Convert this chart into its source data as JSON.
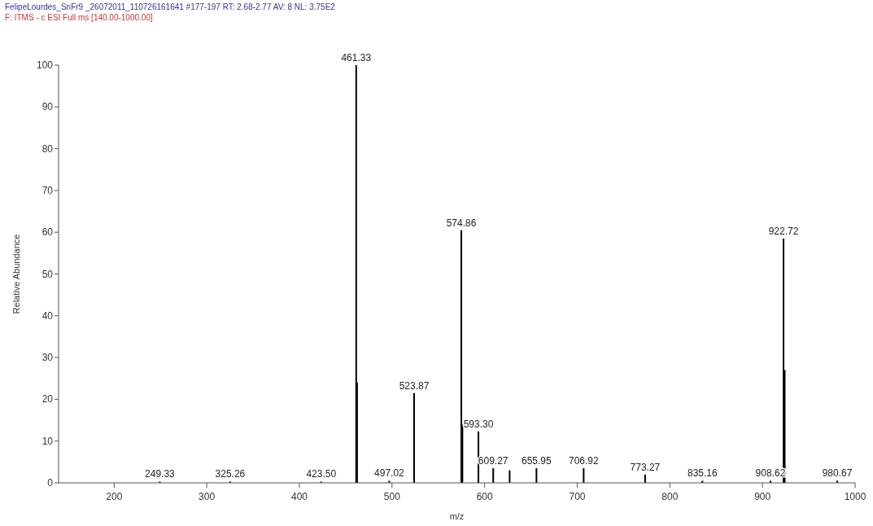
{
  "chart_data": {
    "type": "bar",
    "title": "FelipeLourdes_SnFr9 _26072011_110726161641 #177-197  RT: 2.68-2.77  AV: 8  NL: 3.75E2",
    "subtitle": "F: ITMS - c ESI Full ms [140.00-1000.00]",
    "xlabel": "m/z",
    "ylabel": "Relative Abundance",
    "x": [
      249.33,
      325.26,
      423.5,
      461.33,
      462.3,
      497.02,
      523.87,
      574.86,
      576.0,
      593.3,
      609.27,
      627.0,
      655.95,
      706.92,
      773.27,
      835.16,
      908.62,
      922.72,
      924.0,
      980.67
    ],
    "values": [
      0.3,
      0.3,
      0.3,
      100,
      24,
      0.5,
      21.5,
      60.5,
      14,
      12.3,
      3.5,
      3,
      3.5,
      3.5,
      2,
      0.5,
      0.5,
      58.5,
      27,
      0.5
    ],
    "color": "#000000",
    "xlim": [
      140,
      1000
    ],
    "xticks": [
      200,
      300,
      400,
      500,
      600,
      700,
      800,
      900,
      1000
    ],
    "ylim": [
      0,
      100
    ],
    "yticks": [
      0,
      10,
      20,
      30,
      40,
      50,
      60,
      70,
      80,
      90,
      100
    ],
    "grid": false,
    "annotations": [
      {
        "text": "249.33",
        "x": 249.33,
        "y": 0.3
      },
      {
        "text": "325.26",
        "x": 325.26,
        "y": 0.3
      },
      {
        "text": "423.50",
        "x": 423.5,
        "y": 0.3
      },
      {
        "text": "461.33",
        "x": 461.33,
        "y": 100
      },
      {
        "text": "497.02",
        "x": 497.02,
        "y": 0.5
      },
      {
        "text": "523.87",
        "x": 523.87,
        "y": 21.5
      },
      {
        "text": "574.86",
        "x": 574.86,
        "y": 60.5
      },
      {
        "text": "593.30",
        "x": 593.3,
        "y": 12.3
      },
      {
        "text": "609.27",
        "x": 609.27,
        "y": 3.5
      },
      {
        "text": "655.95",
        "x": 655.95,
        "y": 3.5
      },
      {
        "text": "706.92",
        "x": 706.92,
        "y": 3.5
      },
      {
        "text": "773.27",
        "x": 773.27,
        "y": 2
      },
      {
        "text": "835.16",
        "x": 835.16,
        "y": 0.5
      },
      {
        "text": "908.62",
        "x": 908.62,
        "y": 0.5
      },
      {
        "text": "922.72",
        "x": 922.72,
        "y": 58.5
      },
      {
        "text": "980.67",
        "x": 980.67,
        "y": 0.5
      }
    ]
  }
}
